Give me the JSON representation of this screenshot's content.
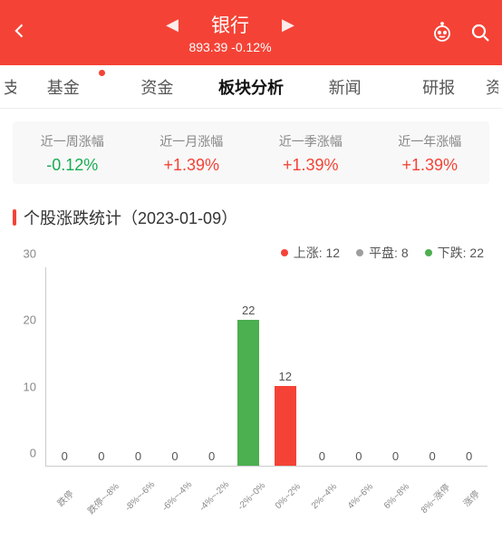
{
  "header": {
    "title": "银行",
    "price": "893.39",
    "change": "-0.12%",
    "bg_color": "#f44336"
  },
  "tabs": {
    "left_edge": "支",
    "items": [
      {
        "label": "基金",
        "badge": true
      },
      {
        "label": "资金"
      },
      {
        "label": "板块分析",
        "active": true
      },
      {
        "label": "新闻"
      },
      {
        "label": "研报"
      }
    ],
    "right_edge": "资"
  },
  "periods": [
    {
      "label": "近一周涨幅",
      "value": "-0.12%",
      "color": "#1aab54"
    },
    {
      "label": "近一月涨幅",
      "value": "+1.39%",
      "color": "#f44336"
    },
    {
      "label": "近一季涨幅",
      "value": "+1.39%",
      "color": "#f44336"
    },
    {
      "label": "近一年涨幅",
      "value": "+1.39%",
      "color": "#f44336"
    }
  ],
  "section_title": "个股涨跌统计（2023-01-09）",
  "legend": [
    {
      "label": "上涨",
      "value": "12",
      "color": "#f44336"
    },
    {
      "label": "平盘",
      "value": "8",
      "color": "#9e9e9e"
    },
    {
      "label": "下跌",
      "value": "22",
      "color": "#4caf50"
    }
  ],
  "chart": {
    "type": "bar",
    "y_max": 30,
    "y_ticks": [
      0,
      10,
      20,
      30
    ],
    "categories": [
      "跌停",
      "跌停~-8%",
      "-8%~-6%",
      "-6%~-4%",
      "-4%~-2%",
      "-2%~0%",
      "0%~2%",
      "2%~4%",
      "4%~6%",
      "6%~8%",
      "8%~涨停",
      "涨停"
    ],
    "values": [
      0,
      0,
      0,
      0,
      0,
      22,
      12,
      0,
      0,
      0,
      0,
      0
    ],
    "bar_colors": [
      "#4caf50",
      "#4caf50",
      "#4caf50",
      "#4caf50",
      "#4caf50",
      "#4caf50",
      "#f44336",
      "#f44336",
      "#f44336",
      "#f44336",
      "#f44336",
      "#f44336"
    ],
    "axis_color": "#cccccc",
    "label_color": "#888888"
  }
}
